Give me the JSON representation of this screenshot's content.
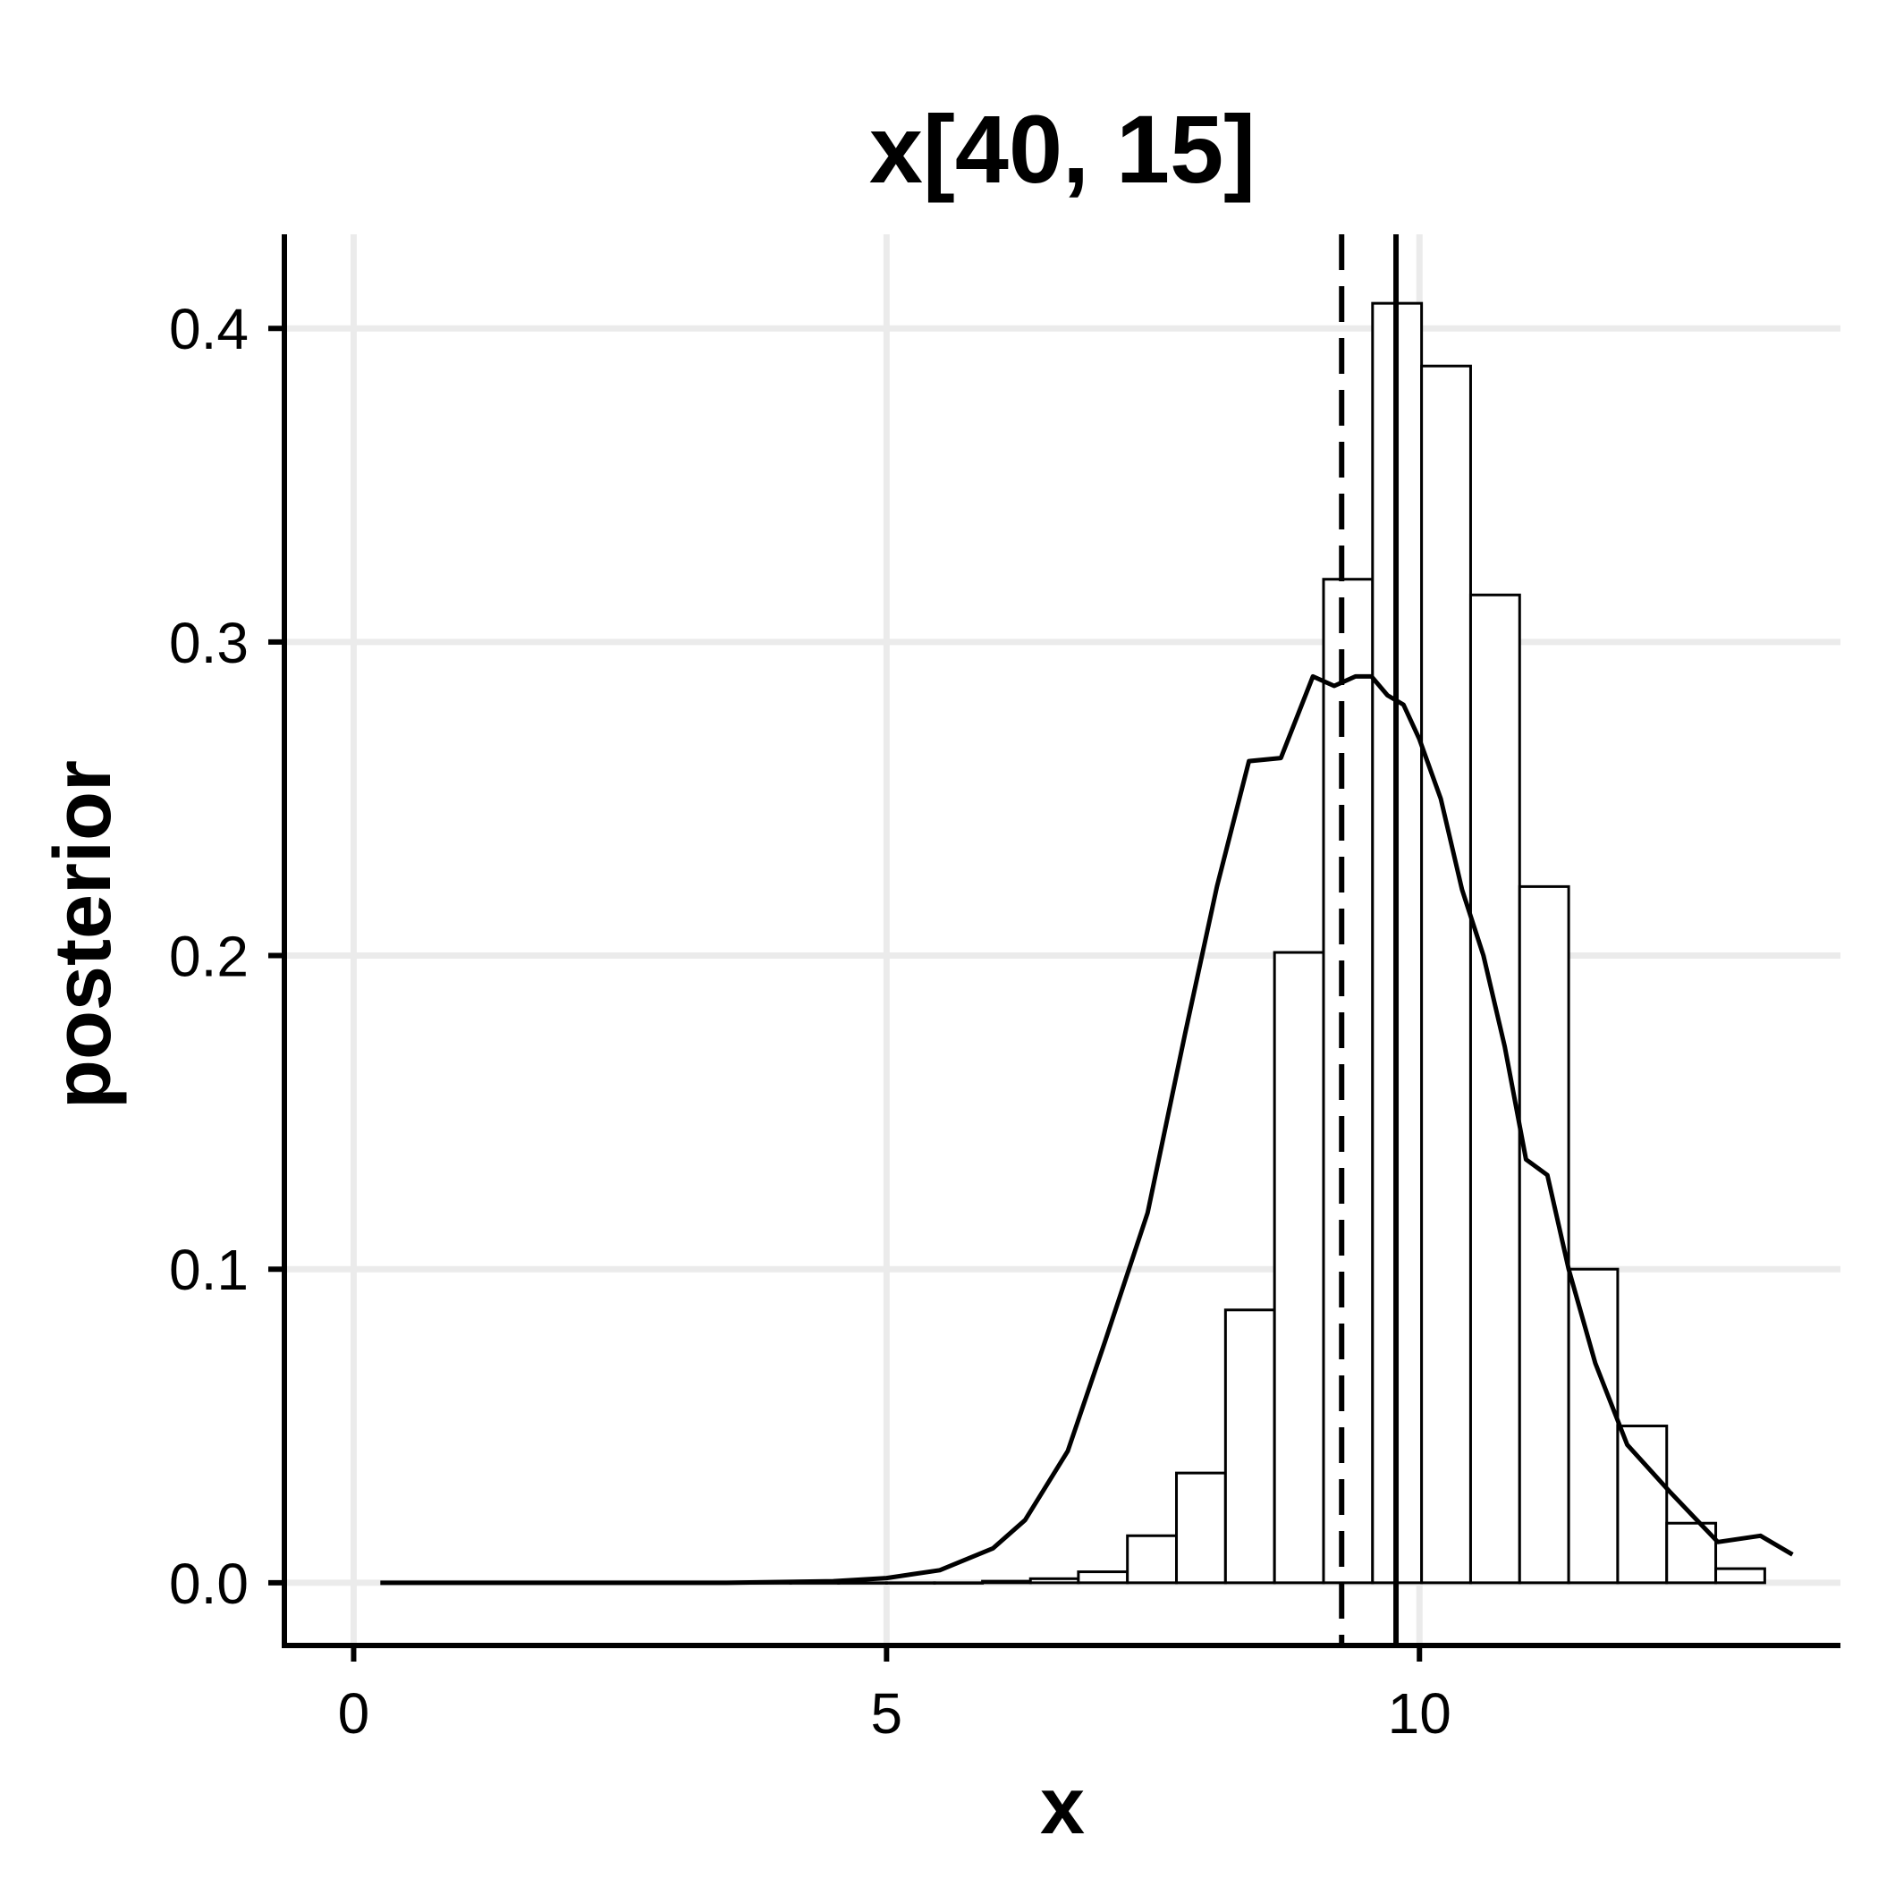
{
  "chart_data": {
    "type": "bar",
    "title": "x[40, 15]",
    "xlabel": "x",
    "ylabel": "posterior",
    "xlim": [
      -0.65,
      13.95
    ],
    "ylim": [
      -0.02,
      0.43
    ],
    "grid": true,
    "xticks": [
      {
        "value": 0,
        "label": "0"
      },
      {
        "value": 5,
        "label": "5"
      },
      {
        "value": 10,
        "label": "10"
      }
    ],
    "yticks": [
      {
        "value": 0.0,
        "label": "0.0"
      },
      {
        "value": 0.1,
        "label": "0.1"
      },
      {
        "value": 0.2,
        "label": "0.2"
      },
      {
        "value": 0.3,
        "label": "0.3"
      },
      {
        "value": 0.4,
        "label": "0.4"
      }
    ],
    "histogram": {
      "bin_edges": [
        1.4,
        1.85,
        2.3,
        2.75,
        3.2,
        3.65,
        4.1,
        4.55,
        5.0,
        5.45,
        5.9,
        6.35,
        6.8,
        7.26,
        7.72,
        8.18,
        8.64,
        9.1,
        9.56,
        10.02,
        10.48,
        10.94,
        11.4,
        11.86,
        12.32,
        12.78,
        13.24
      ],
      "densities": [
        0,
        0,
        0,
        0,
        0,
        0,
        0,
        0,
        0,
        0,
        0.0005,
        0.0013,
        0.0035,
        0.015,
        0.035,
        0.087,
        0.201,
        0.32,
        0.408,
        0.388,
        0.315,
        0.222,
        0.1,
        0.05,
        0.019,
        0.0045
      ]
    },
    "density_curve": {
      "x": [
        0.25,
        1.5,
        2.5,
        3.5,
        4.5,
        5.0,
        5.5,
        6.0,
        6.3,
        6.7,
        7.05,
        7.45,
        7.8,
        8.1,
        8.4,
        8.7,
        9.0,
        9.2,
        9.4,
        9.55,
        9.7,
        9.85,
        10.0,
        10.2,
        10.4,
        10.6,
        10.8,
        11.0,
        11.2,
        11.4,
        11.65,
        11.95,
        12.35,
        12.8,
        13.2,
        13.5
      ],
      "y": [
        0.0,
        0.0,
        0.0,
        0.0,
        0.0005,
        0.0015,
        0.004,
        0.011,
        0.02,
        0.042,
        0.077,
        0.118,
        0.175,
        0.222,
        0.262,
        0.263,
        0.289,
        0.286,
        0.289,
        0.289,
        0.283,
        0.28,
        0.269,
        0.25,
        0.221,
        0.2,
        0.171,
        0.135,
        0.13,
        0.1,
        0.07,
        0.044,
        0.029,
        0.013,
        0.015,
        0.009
      ]
    },
    "vlines": [
      {
        "x": 9.27,
        "style": "dashed"
      },
      {
        "x": 9.78,
        "style": "solid"
      }
    ]
  }
}
